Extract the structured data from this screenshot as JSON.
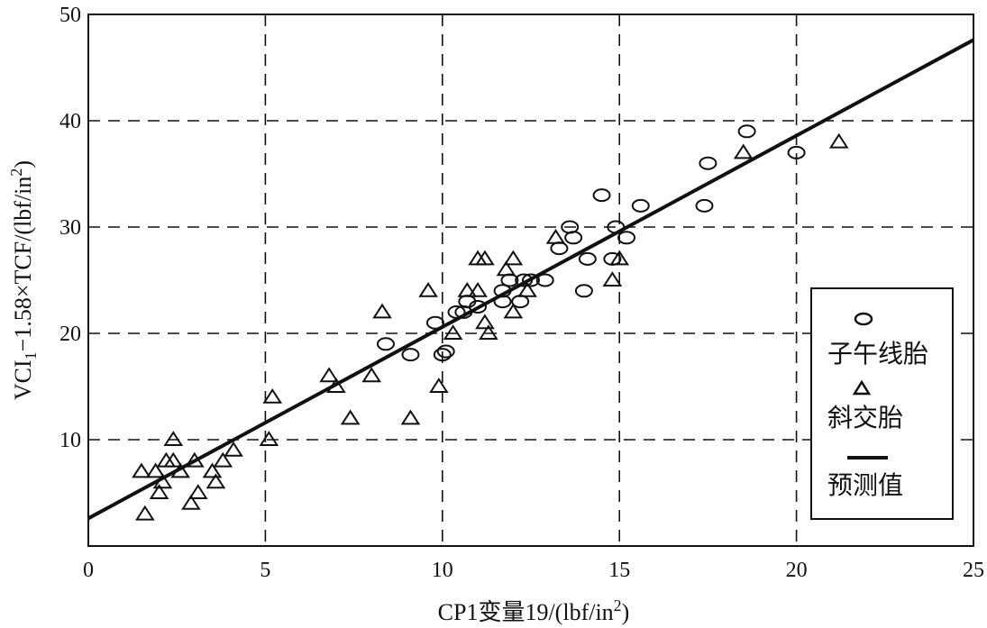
{
  "chart_data": {
    "type": "scatter",
    "xlabel_main": "CP1变量19/(lbf/in",
    "xlabel_sup": "2",
    "xlabel_end": ")",
    "ylabel_a": "VCI",
    "ylabel_sub": "1",
    "ylabel_b": "−1.58×TCF/(lbf/in",
    "ylabel_sup": "2",
    "ylabel_c": ")",
    "xlim": [
      0,
      25
    ],
    "ylim": [
      0,
      50
    ],
    "xticks": [
      0,
      5,
      10,
      15,
      20,
      25
    ],
    "yticks": [
      10,
      20,
      30,
      40,
      50
    ],
    "grid": "dashed",
    "legend_position": "right",
    "legend": [
      {
        "marker": "circle",
        "label": "子午线胎"
      },
      {
        "marker": "triangle",
        "label": "斜交胎"
      },
      {
        "marker": "line",
        "label": "预测值"
      }
    ],
    "series": [
      {
        "name": "子午线胎",
        "marker": "circle",
        "points": [
          [
            8.4,
            19.0
          ],
          [
            9.1,
            18.0
          ],
          [
            9.8,
            21.0
          ],
          [
            10.0,
            18.0
          ],
          [
            10.1,
            18.3
          ],
          [
            10.4,
            22.0
          ],
          [
            10.6,
            22.0
          ],
          [
            10.7,
            23.0
          ],
          [
            11.0,
            22.5
          ],
          [
            11.7,
            24.0
          ],
          [
            11.7,
            23.0
          ],
          [
            11.9,
            25.0
          ],
          [
            12.2,
            23.0
          ],
          [
            12.3,
            25.0
          ],
          [
            12.5,
            25.0
          ],
          [
            12.9,
            25.0
          ],
          [
            13.3,
            28.0
          ],
          [
            13.6,
            30.0
          ],
          [
            13.7,
            29.0
          ],
          [
            14.0,
            24.0
          ],
          [
            14.1,
            27.0
          ],
          [
            14.5,
            33.0
          ],
          [
            14.8,
            27.0
          ],
          [
            14.9,
            30.0
          ],
          [
            15.2,
            29.0
          ],
          [
            15.6,
            32.0
          ],
          [
            17.4,
            32.0
          ],
          [
            17.5,
            36.0
          ],
          [
            18.6,
            39.0
          ],
          [
            20.0,
            37.0
          ]
        ]
      },
      {
        "name": "斜交胎",
        "marker": "triangle",
        "points": [
          [
            1.5,
            7.0
          ],
          [
            1.6,
            3.0
          ],
          [
            1.9,
            7.0
          ],
          [
            2.0,
            5.0
          ],
          [
            2.1,
            6.0
          ],
          [
            2.2,
            8.0
          ],
          [
            2.4,
            10.0
          ],
          [
            2.4,
            8.0
          ],
          [
            2.6,
            7.0
          ],
          [
            2.9,
            4.0
          ],
          [
            3.0,
            8.0
          ],
          [
            3.1,
            5.0
          ],
          [
            3.5,
            7.0
          ],
          [
            3.6,
            6.0
          ],
          [
            3.8,
            8.0
          ],
          [
            4.1,
            9.0
          ],
          [
            5.1,
            10.0
          ],
          [
            5.2,
            14.0
          ],
          [
            6.8,
            16.0
          ],
          [
            7.0,
            15.0
          ],
          [
            7.4,
            12.0
          ],
          [
            8.0,
            16.0
          ],
          [
            8.3,
            22.0
          ],
          [
            9.1,
            12.0
          ],
          [
            9.6,
            24.0
          ],
          [
            9.9,
            15.0
          ],
          [
            10.3,
            20.0
          ],
          [
            10.7,
            24.0
          ],
          [
            11.0,
            24.0
          ],
          [
            11.0,
            27.0
          ],
          [
            11.2,
            27.0
          ],
          [
            11.2,
            21.0
          ],
          [
            11.3,
            20.0
          ],
          [
            11.8,
            26.0
          ],
          [
            12.0,
            27.0
          ],
          [
            12.0,
            22.0
          ],
          [
            12.4,
            24.0
          ],
          [
            13.2,
            29.0
          ],
          [
            14.8,
            25.0
          ],
          [
            15.0,
            27.0
          ],
          [
            18.5,
            37.0
          ],
          [
            21.2,
            38.0
          ]
        ]
      },
      {
        "name": "预测值",
        "marker": "line",
        "points": [
          [
            0,
            2.6
          ],
          [
            25,
            47.6
          ]
        ]
      }
    ]
  }
}
